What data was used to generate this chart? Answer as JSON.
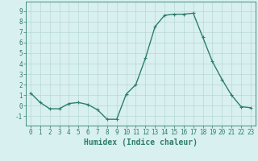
{
  "x": [
    0,
    1,
    2,
    3,
    4,
    5,
    6,
    7,
    8,
    9,
    10,
    11,
    12,
    13,
    14,
    15,
    16,
    17,
    18,
    19,
    20,
    21,
    22,
    23
  ],
  "y": [
    1.2,
    0.3,
    -0.3,
    -0.3,
    0.2,
    0.3,
    0.1,
    -0.4,
    -1.3,
    -1.3,
    1.1,
    2.0,
    4.5,
    7.5,
    8.6,
    8.7,
    8.7,
    8.8,
    6.5,
    4.2,
    2.5,
    1.0,
    -0.1,
    -0.2
  ],
  "line_color": "#2e7d6e",
  "marker": "+",
  "marker_size": 3,
  "bg_color": "#d8f0f0",
  "grid_color": "#b8d8d4",
  "xlabel": "Humidex (Indice chaleur)",
  "xlabel_fontsize": 7,
  "xlabel_color": "#2e7d6e",
  "ylabel_ticks": [
    -1,
    0,
    1,
    2,
    3,
    4,
    5,
    6,
    7,
    8,
    9
  ],
  "xlim": [
    -0.5,
    23.5
  ],
  "ylim": [
    -1.9,
    9.9
  ],
  "tick_fontsize": 5.5,
  "tick_color": "#2e7d6e",
  "line_width": 1.0,
  "spine_color": "#2e7d6e"
}
